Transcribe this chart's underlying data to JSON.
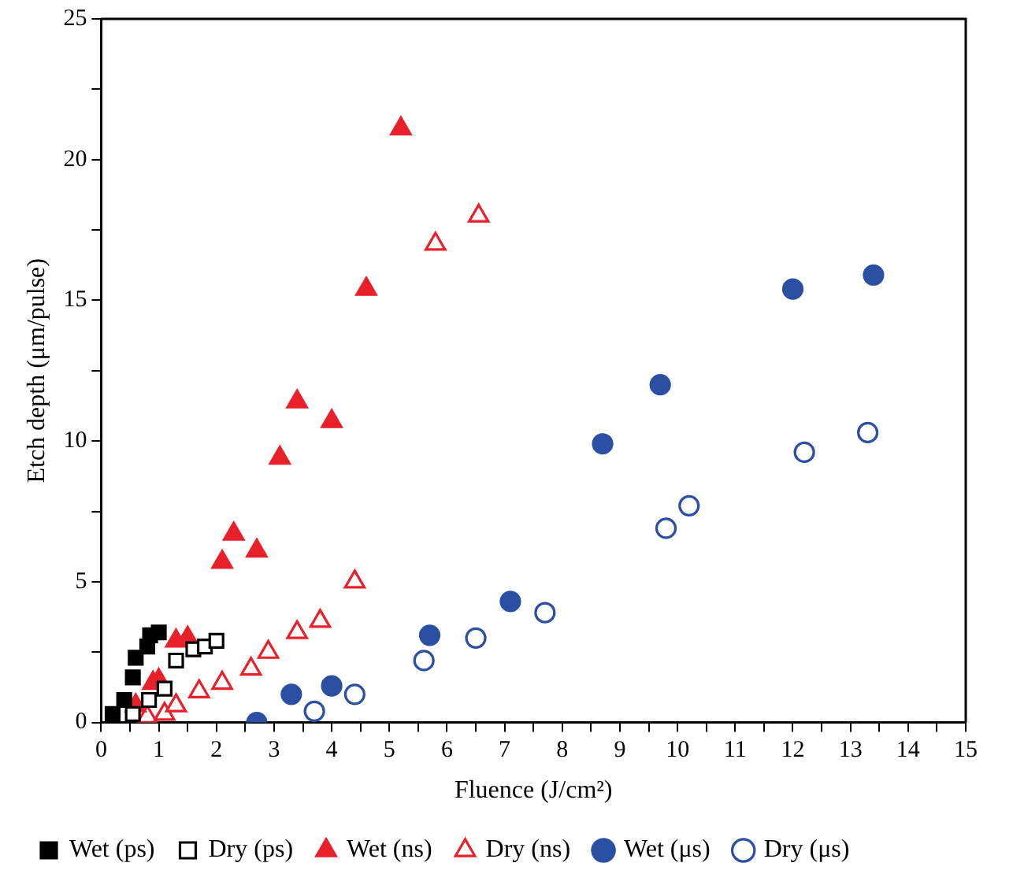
{
  "chart_data": {
    "type": "scatter",
    "xlabel": "Fluence (J/cm²)",
    "ylabel": "Etch depth (μm/pulse)",
    "xlim": [
      0,
      15
    ],
    "ylim": [
      0,
      25
    ],
    "xticks": [
      0,
      {
        "value": 0.5,
        "label": null
      },
      1,
      {
        "value": 1.5,
        "label": null
      },
      2,
      {
        "value": 2.5,
        "label": null
      },
      3,
      {
        "value": 3.5,
        "label": null
      },
      4,
      {
        "value": 4.5,
        "label": null
      },
      5,
      {
        "value": 5.5,
        "label": null
      },
      6,
      {
        "value": 6.5,
        "label": null
      },
      7,
      {
        "value": 7.5,
        "label": null
      },
      8,
      {
        "value": 8.5,
        "label": null
      },
      9,
      {
        "value": 9.5,
        "label": null
      },
      10,
      {
        "value": 10.5,
        "label": null
      },
      11,
      {
        "value": 11.5,
        "label": null
      },
      12,
      {
        "value": 12.5,
        "label": null
      },
      13,
      {
        "value": 13.5,
        "label": null
      },
      14,
      {
        "value": 14.5,
        "label": null
      },
      15
    ],
    "yticks": [
      0,
      {
        "value": 2.5,
        "label": null
      },
      5,
      {
        "value": 7.5,
        "label": null
      },
      10,
      {
        "value": 12.5,
        "label": null
      },
      15,
      {
        "value": 17.5,
        "label": null
      },
      20,
      {
        "value": 22.5,
        "label": null
      },
      25
    ],
    "grid": false,
    "legend": "bottom",
    "series": [
      {
        "name": "Wet (ps)",
        "color": "#000000",
        "marker": "square",
        "x": [
          0.2,
          0.4,
          0.55,
          0.6,
          0.8,
          0.85,
          1.0
        ],
        "values": [
          0.3,
          0.8,
          1.6,
          2.3,
          2.7,
          3.1,
          3.2
        ]
      },
      {
        "name": "Dry (ps)",
        "color": "#000000",
        "marker": "square",
        "x": [
          0.55,
          0.83,
          1.1,
          1.3,
          1.6,
          1.8,
          2.0
        ],
        "values": [
          0.3,
          0.8,
          1.2,
          2.2,
          2.6,
          2.7,
          2.9
        ]
      },
      {
        "name": "Wet (ns)",
        "color": "#e8202a",
        "marker": "triangle",
        "x": [
          0.6,
          0.9,
          1.0,
          1.3,
          1.5,
          2.1,
          2.3,
          2.7,
          3.1,
          3.4,
          4.0,
          4.6,
          5.2
        ],
        "values": [
          0.6,
          1.4,
          1.5,
          2.9,
          3.0,
          5.7,
          6.7,
          6.1,
          9.4,
          11.4,
          10.7,
          15.4,
          21.1
        ]
      },
      {
        "name": "Dry (ns)",
        "color": "#e8202a",
        "marker": "triangle",
        "x": [
          0.8,
          1.1,
          1.3,
          1.7,
          2.1,
          2.6,
          2.9,
          3.4,
          3.8,
          4.4,
          5.8,
          6.55
        ],
        "values": [
          0.2,
          0.3,
          0.6,
          1.1,
          1.4,
          1.9,
          2.5,
          3.2,
          3.6,
          5.0,
          17.0,
          18.0
        ]
      },
      {
        "name": "Wet (μs)",
        "color": "#2b4fa3",
        "marker": "circle",
        "x": [
          2.7,
          3.3,
          4.0,
          5.7,
          7.1,
          8.7,
          9.7,
          12.0,
          13.4
        ],
        "values": [
          0.0,
          1.0,
          1.3,
          3.1,
          4.3,
          9.9,
          12.0,
          15.4,
          15.9
        ]
      },
      {
        "name": "Dry (μs)",
        "color": "#2b4fa3",
        "marker": "circle",
        "x": [
          3.7,
          4.4,
          5.6,
          6.5,
          7.7,
          9.8,
          10.2,
          12.2,
          13.3
        ],
        "values": [
          0.4,
          1.0,
          2.2,
          3.0,
          3.9,
          6.9,
          7.7,
          9.6,
          10.3
        ]
      }
    ]
  }
}
